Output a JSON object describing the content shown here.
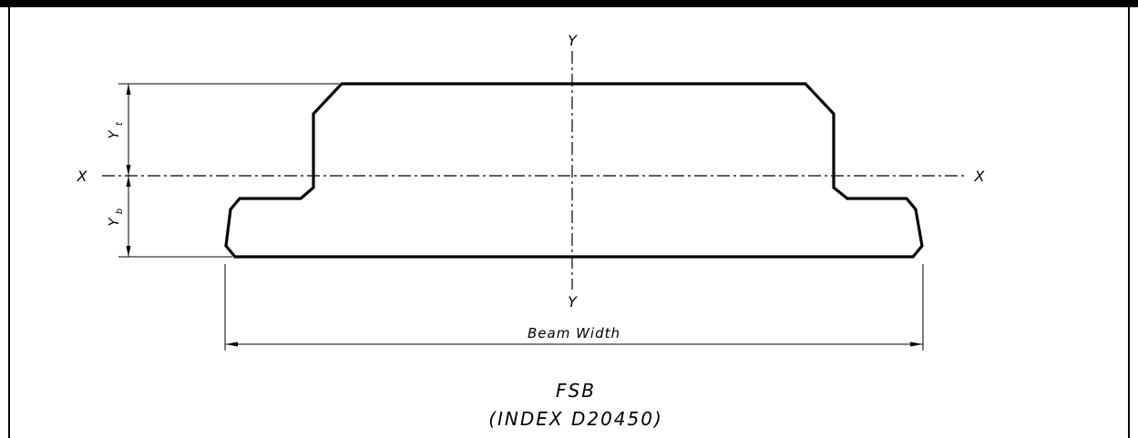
{
  "drawing": {
    "axis_labels": {
      "y_top": "Y",
      "y_bottom": "Y",
      "x_left": "X",
      "x_right": "X"
    },
    "dimensions": {
      "y_t_main": "Y",
      "y_t_sub": "t",
      "y_b_main": "Y",
      "y_b_sub": "b",
      "beam_width": "Beam Width"
    },
    "title": {
      "line1": "FSB",
      "line2": "(INDEX D20450)"
    }
  }
}
